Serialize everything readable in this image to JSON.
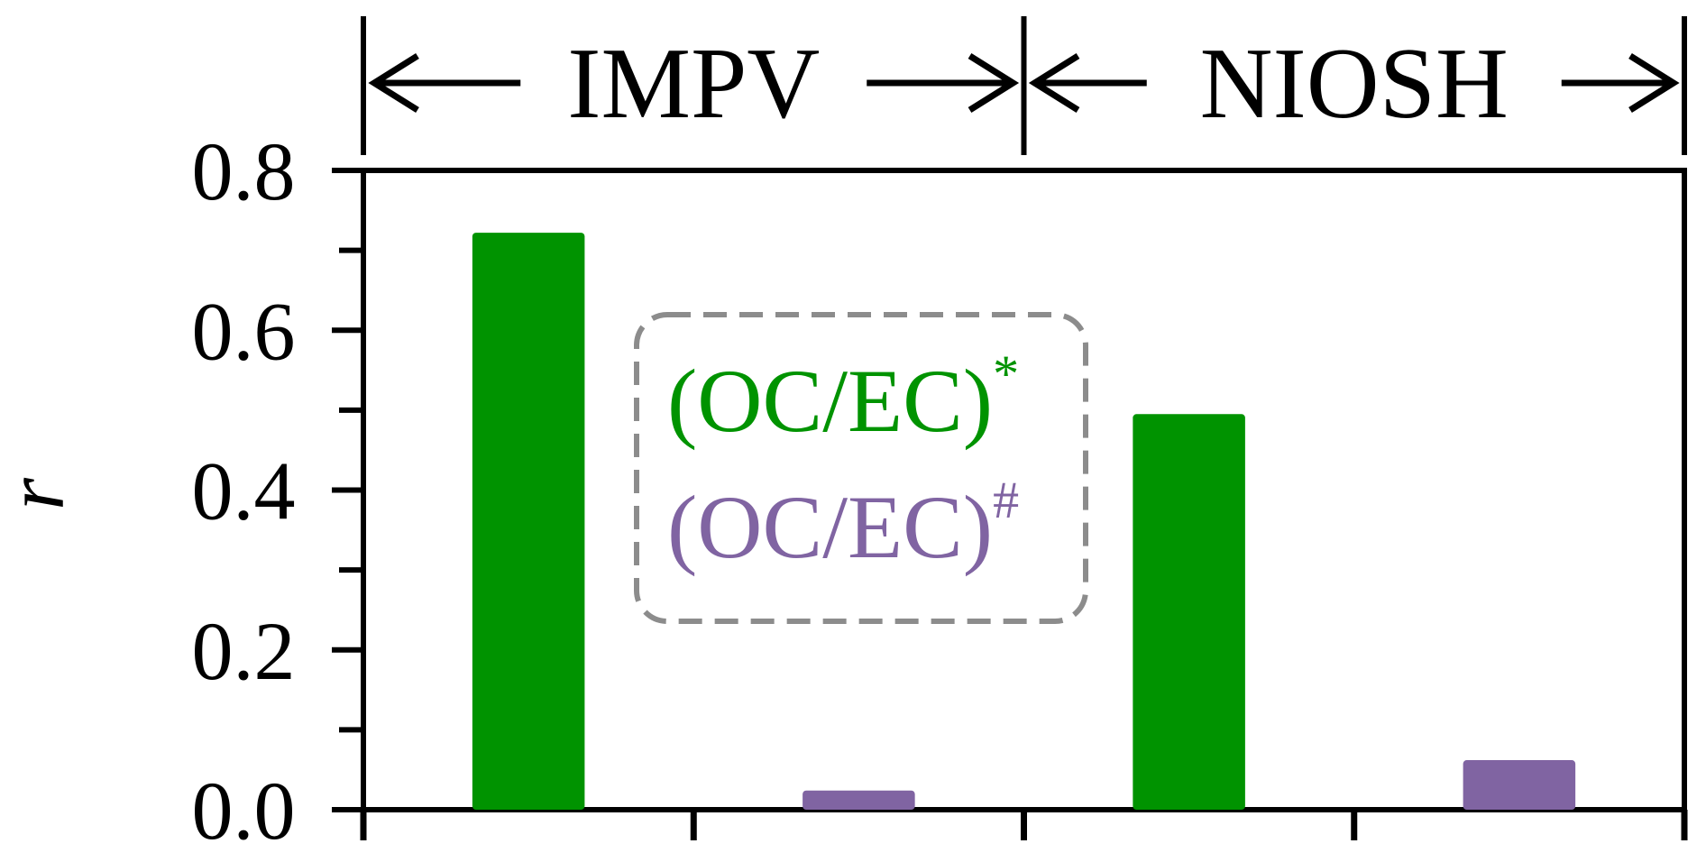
{
  "chart_data": {
    "type": "bar",
    "groups": [
      {
        "label": "IMPV",
        "bars": [
          {
            "series": "(OC/EC)*",
            "value": 0.722
          },
          {
            "series": "(OC/EC)#",
            "value": 0.024
          }
        ]
      },
      {
        "label": "NIOSH",
        "bars": [
          {
            "series": "(OC/EC)*",
            "value": 0.495
          },
          {
            "series": "(OC/EC)#",
            "value": 0.062
          }
        ]
      }
    ],
    "series": [
      {
        "name": "(OC/EC)*",
        "base": "(OC/EC)",
        "sup": "*",
        "color": "#009300"
      },
      {
        "name": "(OC/EC)#",
        "base": "(OC/EC)",
        "sup": "#",
        "color": "#8064A2"
      }
    ],
    "ylabel": "r",
    "ylim": [
      0,
      0.8
    ],
    "yticks": [
      "0.0",
      "0.2",
      "0.4",
      "0.6",
      "0.8"
    ],
    "y_minor_ticks": [
      0.1,
      0.3,
      0.5,
      0.7
    ],
    "legend_position": "center",
    "grid": false
  }
}
